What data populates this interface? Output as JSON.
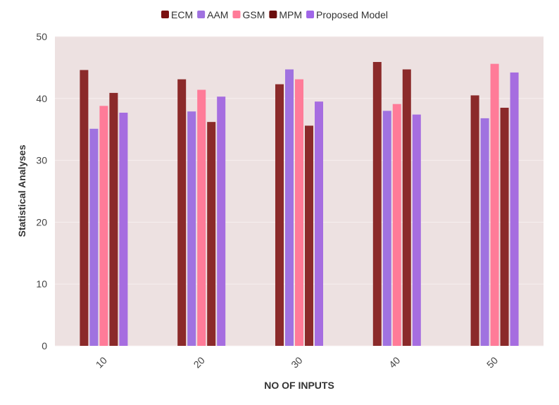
{
  "chart_data": {
    "type": "bar",
    "categories": [
      "10",
      "20",
      "30",
      "40",
      "50"
    ],
    "series": [
      {
        "name": "ECM",
        "color": "#8b2a2a",
        "legend_color": "#7a1010",
        "values": [
          44.6,
          43.1,
          42.3,
          45.9,
          40.5
        ]
      },
      {
        "name": "AAM",
        "color": "#a072e0",
        "legend_color": "#a072e0",
        "values": [
          35.1,
          37.9,
          44.7,
          38.0,
          36.8
        ]
      },
      {
        "name": "GSM",
        "color": "#ff7b98",
        "legend_color": "#ff7b98",
        "values": [
          38.8,
          41.4,
          43.1,
          39.1,
          45.6
        ]
      },
      {
        "name": "MPM",
        "color": "#8b2a2a",
        "legend_color": "#6a0d0d",
        "values": [
          40.9,
          36.2,
          35.6,
          44.7,
          38.5
        ]
      },
      {
        "name": "Proposed Model",
        "color": "#a66de0",
        "legend_color": "#a066e8",
        "values": [
          37.7,
          40.3,
          39.5,
          37.4,
          44.2
        ]
      }
    ],
    "title": "",
    "xlabel": "NO OF INPUTS",
    "ylabel": "Statistical Analyses",
    "ylim": [
      0,
      50
    ],
    "yticks": [
      "0",
      "10",
      "20",
      "30",
      "40",
      "50"
    ],
    "grid": true,
    "legend_position": "top-center",
    "plot_background": "#ede1e1"
  }
}
